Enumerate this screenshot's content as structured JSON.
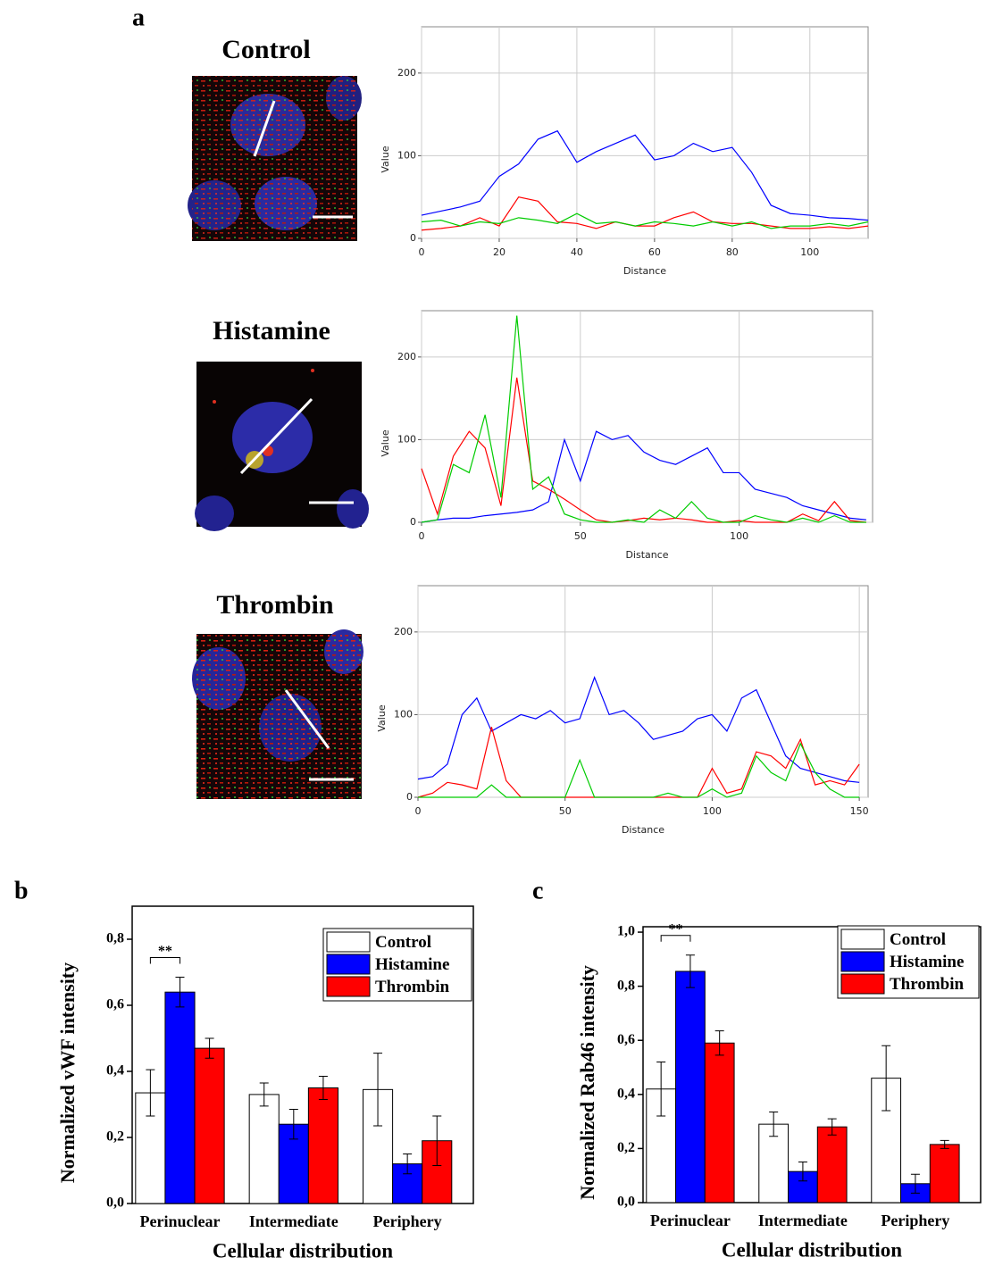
{
  "panel_labels": [
    "a",
    "b",
    "c"
  ],
  "images": [
    {
      "title": "Control"
    },
    {
      "title": "Histamine"
    },
    {
      "title": "Thrombin"
    }
  ],
  "chart_data": [
    {
      "type": "line",
      "xlabel": "Distance",
      "ylabel": "Value",
      "grid": true,
      "xlim": [
        0,
        115
      ],
      "ylim": [
        0,
        256
      ],
      "xticks": [
        0,
        20,
        40,
        60,
        80,
        100
      ],
      "yticks": [
        0,
        100,
        200
      ],
      "x": [
        0,
        5,
        10,
        15,
        20,
        25,
        30,
        35,
        40,
        45,
        50,
        55,
        60,
        65,
        70,
        75,
        80,
        85,
        90,
        95,
        100,
        105,
        110,
        115
      ],
      "series": [
        {
          "color": "#0000ff",
          "values": [
            28,
            33,
            38,
            45,
            75,
            90,
            120,
            130,
            92,
            105,
            115,
            125,
            95,
            100,
            115,
            105,
            110,
            80,
            40,
            30,
            28,
            25,
            24,
            22
          ]
        },
        {
          "color": "#ff0000",
          "values": [
            10,
            12,
            15,
            25,
            15,
            50,
            45,
            20,
            18,
            12,
            20,
            15,
            15,
            25,
            32,
            20,
            18,
            18,
            15,
            12,
            12,
            14,
            12,
            15
          ]
        },
        {
          "color": "#00cc00",
          "values": [
            20,
            22,
            15,
            20,
            18,
            25,
            22,
            18,
            30,
            18,
            20,
            15,
            20,
            18,
            15,
            20,
            15,
            20,
            12,
            15,
            15,
            18,
            15,
            20
          ]
        }
      ]
    },
    {
      "type": "line",
      "xlabel": "Distance",
      "ylabel": "Value",
      "grid": true,
      "xlim": [
        0,
        142
      ],
      "ylim": [
        0,
        256
      ],
      "xticks": [
        0,
        50,
        100
      ],
      "yticks": [
        0,
        100,
        200
      ],
      "x": [
        0,
        5,
        10,
        15,
        20,
        25,
        30,
        35,
        40,
        45,
        50,
        55,
        60,
        65,
        70,
        75,
        80,
        85,
        90,
        95,
        100,
        105,
        110,
        115,
        120,
        125,
        130,
        135,
        140
      ],
      "series": [
        {
          "color": "#0000ff",
          "values": [
            0,
            3,
            5,
            5,
            8,
            10,
            12,
            15,
            25,
            100,
            50,
            110,
            100,
            105,
            85,
            75,
            70,
            80,
            90,
            60,
            60,
            40,
            35,
            30,
            20,
            15,
            10,
            5,
            3
          ]
        },
        {
          "color": "#ff0000",
          "values": [
            65,
            10,
            80,
            110,
            90,
            20,
            175,
            50,
            40,
            28,
            15,
            3,
            0,
            2,
            5,
            3,
            5,
            3,
            0,
            0,
            2,
            0,
            0,
            0,
            10,
            2,
            25,
            2,
            0
          ]
        },
        {
          "color": "#00cc00",
          "values": [
            0,
            3,
            70,
            60,
            130,
            30,
            250,
            40,
            55,
            10,
            3,
            0,
            0,
            3,
            0,
            15,
            5,
            25,
            5,
            0,
            0,
            8,
            3,
            0,
            5,
            0,
            8,
            0,
            0
          ]
        }
      ]
    },
    {
      "type": "line",
      "xlabel": "Distance",
      "ylabel": "Value",
      "grid": true,
      "xlim": [
        0,
        153
      ],
      "ylim": [
        0,
        256
      ],
      "xticks": [
        0,
        50,
        100,
        150
      ],
      "yticks": [
        0,
        100,
        200
      ],
      "x": [
        0,
        5,
        10,
        15,
        20,
        25,
        30,
        35,
        40,
        45,
        50,
        55,
        60,
        65,
        70,
        75,
        80,
        85,
        90,
        95,
        100,
        105,
        110,
        115,
        120,
        125,
        130,
        135,
        140,
        145,
        150
      ],
      "series": [
        {
          "color": "#0000ff",
          "values": [
            22,
            25,
            40,
            100,
            120,
            80,
            90,
            100,
            95,
            105,
            90,
            95,
            145,
            100,
            105,
            90,
            70,
            75,
            80,
            95,
            100,
            80,
            120,
            130,
            90,
            50,
            35,
            30,
            25,
            20,
            18
          ]
        },
        {
          "color": "#ff0000",
          "values": [
            0,
            5,
            18,
            15,
            10,
            85,
            20,
            0,
            0,
            0,
            0,
            0,
            0,
            0,
            0,
            0,
            0,
            0,
            0,
            0,
            35,
            5,
            10,
            55,
            50,
            35,
            70,
            15,
            20,
            15,
            40
          ]
        },
        {
          "color": "#00cc00",
          "values": [
            0,
            0,
            0,
            0,
            0,
            15,
            0,
            0,
            0,
            0,
            0,
            45,
            0,
            0,
            0,
            0,
            0,
            5,
            0,
            0,
            10,
            0,
            5,
            50,
            30,
            20,
            65,
            30,
            10,
            0,
            0
          ]
        }
      ]
    },
    {
      "type": "bar",
      "xlabel": "Cellular distribution",
      "ylabel": "Normalized vWF intensity",
      "annotation": "**",
      "legend": "upper right",
      "categories": [
        "Perinuclear",
        "Intermediate",
        "Periphery"
      ],
      "ylim": [
        0,
        0.9
      ],
      "yticks": [
        {
          "value": 0,
          "label": "0,0"
        },
        {
          "value": 0.2,
          "label": "0,2"
        },
        {
          "value": 0.4,
          "label": "0,4"
        },
        {
          "value": 0.6,
          "label": "0,6"
        },
        {
          "value": 0.8,
          "label": "0,8"
        }
      ],
      "series": [
        {
          "name": "Control",
          "color": "#ffffff",
          "values": [
            0.335,
            0.33,
            0.345
          ],
          "errors": [
            0.07,
            0.035,
            0.11
          ]
        },
        {
          "name": "Histamine",
          "color": "#0000ff",
          "values": [
            0.64,
            0.24,
            0.12
          ],
          "errors": [
            0.045,
            0.045,
            0.03
          ]
        },
        {
          "name": "Thrombin",
          "color": "#ff0000",
          "values": [
            0.47,
            0.35,
            0.19
          ],
          "errors": [
            0.03,
            0.035,
            0.075
          ]
        }
      ]
    },
    {
      "type": "bar",
      "xlabel": "Cellular distribution",
      "ylabel": "Normalized Rab46 intensity",
      "annotation": "**",
      "legend": "upper right",
      "categories": [
        "Perinuclear",
        "Intermediate",
        "Periphery"
      ],
      "ylim": [
        0,
        1.02
      ],
      "yticks": [
        {
          "value": 0,
          "label": "0,0"
        },
        {
          "value": 0.2,
          "label": "0,2"
        },
        {
          "value": 0.4,
          "label": "0,4"
        },
        {
          "value": 0.6,
          "label": "0,6"
        },
        {
          "value": 0.8,
          "label": "0,8"
        },
        {
          "value": 1,
          "label": "1,0"
        }
      ],
      "series": [
        {
          "name": "Control",
          "color": "#ffffff",
          "values": [
            0.42,
            0.29,
            0.46
          ],
          "errors": [
            0.1,
            0.045,
            0.12
          ]
        },
        {
          "name": "Histamine",
          "color": "#0000ff",
          "values": [
            0.855,
            0.115,
            0.07
          ],
          "errors": [
            0.06,
            0.035,
            0.035
          ]
        },
        {
          "name": "Thrombin",
          "color": "#ff0000",
          "values": [
            0.59,
            0.28,
            0.215
          ],
          "errors": [
            0.045,
            0.03,
            0.015
          ]
        }
      ]
    }
  ]
}
